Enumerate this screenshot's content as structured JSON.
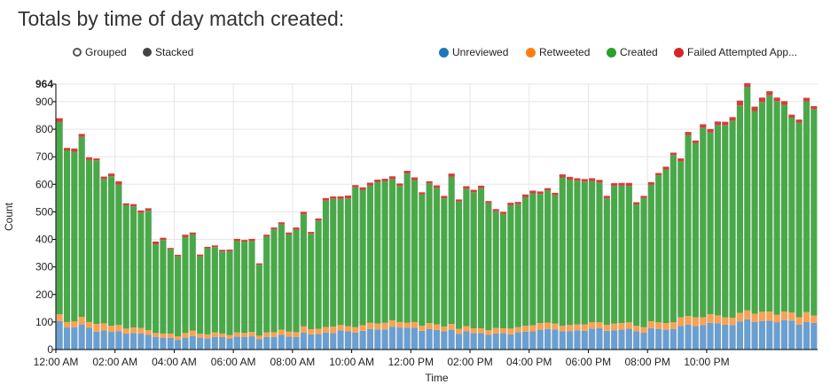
{
  "title": "Totals by time of day match created:",
  "controls": {
    "grouped_label": "Grouped",
    "stacked_label": "Stacked",
    "selected": "stacked"
  },
  "chart_data": {
    "type": "bar",
    "stacked": true,
    "xlabel": "Time",
    "ylabel": "Count",
    "ylim": [
      0,
      964
    ],
    "y_ticks": [
      0,
      100,
      200,
      300,
      400,
      500,
      600,
      700,
      800,
      900,
      964
    ],
    "x_tick_labels": [
      "12:00 AM",
      "02:00 AM",
      "04:00 AM",
      "06:00 AM",
      "08:00 AM",
      "10:00 AM",
      "12:00 PM",
      "02:00 PM",
      "04:00 PM",
      "06:00 PM",
      "08:00 PM",
      "10:00 PM"
    ],
    "bars_per_tick": 8,
    "grid": true,
    "legend_position": "top-right",
    "series": [
      {
        "name": "Unreviewed",
        "color": "#6a9fcf",
        "legend_color": "#1f77b4",
        "values": [
          103,
          80,
          81,
          90,
          79,
          65,
          69,
          64,
          66,
          58,
          60,
          58,
          53,
          46,
          43,
          42,
          35,
          43,
          49,
          43,
          40,
          46,
          45,
          40,
          47,
          45,
          48,
          37,
          46,
          46,
          53,
          47,
          46,
          62,
          55,
          56,
          62,
          60,
          70,
          66,
          62,
          68,
          75,
          73,
          73,
          83,
          80,
          79,
          79,
          68,
          75,
          71,
          66,
          72,
          57,
          66,
          60,
          60,
          53,
          58,
          60,
          55,
          63,
          65,
          66,
          72,
          75,
          73,
          66,
          67,
          70,
          68,
          76,
          77,
          68,
          70,
          72,
          76,
          66,
          61,
          78,
          75,
          72,
          74,
          86,
          90,
          85,
          89,
          97,
          95,
          90,
          89,
          102,
          110,
          100,
          103,
          105,
          98,
          107,
          105,
          90,
          100,
          97
        ]
      },
      {
        "name": "Retweeted",
        "color": "#f9a155",
        "legend_color": "#ff7f0e",
        "values": [
          25,
          20,
          21,
          28,
          21,
          28,
          26,
          22,
          23,
          18,
          20,
          20,
          17,
          14,
          15,
          16,
          13,
          17,
          20,
          14,
          15,
          16,
          13,
          12,
          15,
          15,
          16,
          13,
          16,
          17,
          19,
          18,
          17,
          22,
          19,
          19,
          20,
          23,
          19,
          19,
          19,
          20,
          22,
          21,
          24,
          23,
          20,
          19,
          21,
          18,
          21,
          20,
          17,
          21,
          18,
          19,
          17,
          17,
          17,
          20,
          17,
          21,
          18,
          21,
          22,
          24,
          23,
          21,
          20,
          22,
          21,
          23,
          23,
          22,
          22,
          24,
          24,
          23,
          20,
          20,
          25,
          24,
          24,
          25,
          31,
          32,
          32,
          28,
          31,
          29,
          27,
          26,
          31,
          32,
          30,
          34,
          33,
          28,
          31,
          30,
          27,
          36,
          26
        ]
      },
      {
        "name": "Created",
        "color": "#4aa84a",
        "legend_color": "#2ca02c",
        "values": [
          698,
          623,
          616,
          654,
          588,
          594,
          524,
          543,
          510,
          448,
          440,
          419,
          434,
          322,
          340,
          306,
          290,
          348,
          349,
          281,
          313,
          310,
          298,
          305,
          332,
          332,
          330,
          258,
          348,
          373,
          382,
          353,
          372,
          407,
          346,
          393,
          459,
          464,
          458,
          464,
          508,
          492,
          499,
          515,
          515,
          513,
          494,
          541,
          515,
          477,
          507,
          496,
          466,
          534,
          462,
          499,
          494,
          509,
          461,
          424,
          415,
          448,
          447,
          467,
          479,
          469,
          480,
          466,
          539,
          528,
          522,
          519,
          513,
          507,
          459,
          500,
          499,
          495,
          441,
          469,
          495,
          533,
          558,
          607,
          566,
          657,
          632,
          689,
          660,
          691,
          698,
          716,
          753,
          811,
          736,
          762,
          785,
          776,
          750,
          707,
          707,
          765,
          750
        ]
      },
      {
        "name": "Failed Attempted App...",
        "color": "#d73c3c",
        "legend_color": "#d62728",
        "values": [
          14,
          9,
          12,
          11,
          10,
          7,
          9,
          10,
          12,
          7,
          8,
          8,
          9,
          10,
          8,
          5,
          6,
          9,
          7,
          7,
          5,
          6,
          6,
          6,
          8,
          6,
          8,
          5,
          7,
          7,
          8,
          7,
          8,
          9,
          7,
          8,
          9,
          9,
          9,
          10,
          8,
          9,
          10,
          8,
          8,
          10,
          9,
          10,
          10,
          8,
          8,
          9,
          9,
          12,
          8,
          9,
          9,
          9,
          8,
          8,
          8,
          9,
          8,
          10,
          10,
          9,
          8,
          9,
          11,
          10,
          9,
          9,
          10,
          10,
          9,
          10,
          10,
          11,
          8,
          8,
          10,
          9,
          10,
          9,
          11,
          11,
          10,
          12,
          13,
          13,
          12,
          13,
          18,
          14,
          16,
          16,
          15,
          13,
          14,
          11,
          11,
          13,
          11
        ]
      }
    ]
  }
}
